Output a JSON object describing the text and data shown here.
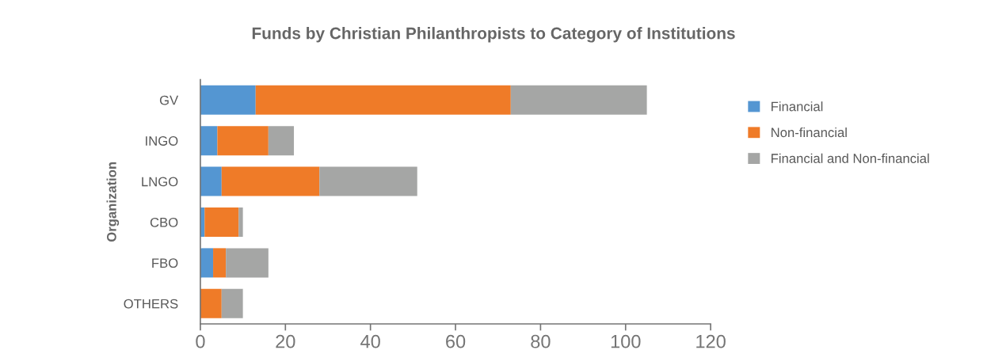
{
  "chart_data": {
    "type": "bar",
    "orientation": "horizontal",
    "stacked": true,
    "title": "Funds by Christian Philanthropists to Category of Institutions",
    "ylabel": "Organization",
    "categories": [
      "GV",
      "INGO",
      "LNGO",
      "CBO",
      "FBO",
      "OTHERS"
    ],
    "series": [
      {
        "name": "Financial",
        "color": "#5496d2",
        "values": [
          13,
          4,
          5,
          1,
          3,
          0
        ]
      },
      {
        "name": "Non-financial",
        "color": "#ef7b28",
        "values": [
          60,
          12,
          23,
          8,
          3,
          5
        ]
      },
      {
        "name": "Financial and Non-financial",
        "color": "#a5a6a5",
        "values": [
          32,
          6,
          23,
          1,
          10,
          5
        ]
      }
    ],
    "xlim": [
      0,
      120
    ],
    "xticks": [
      0,
      20,
      40,
      60,
      80,
      100,
      120
    ],
    "grid": false,
    "legend": "right"
  }
}
